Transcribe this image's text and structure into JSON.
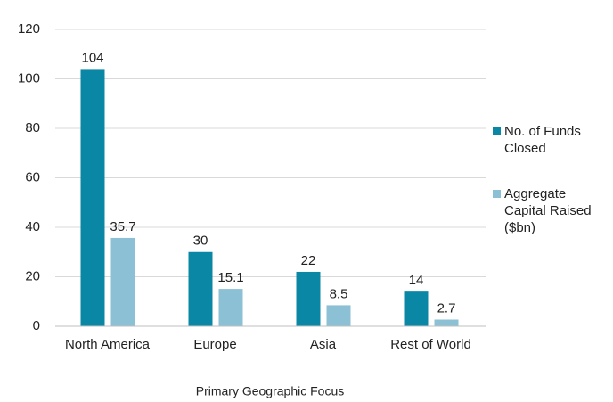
{
  "chart_data": {
    "type": "bar",
    "x_label": "Primary Geographic Focus",
    "categories": [
      "North America",
      "Europe",
      "Asia",
      "Rest of World"
    ],
    "series": [
      {
        "name": "No. of Funds Closed",
        "color": "#0b87a6",
        "values": [
          104,
          30,
          22,
          14
        ]
      },
      {
        "name": "Aggregate Capital Raised ($bn)",
        "color": "#8cc0d5",
        "values": [
          35.7,
          15.1,
          8.5,
          2.7
        ]
      }
    ],
    "ylim": [
      0,
      120
    ],
    "yticks": [
      0,
      20,
      40,
      60,
      80,
      100,
      120
    ],
    "grid": true,
    "legend": "right"
  }
}
